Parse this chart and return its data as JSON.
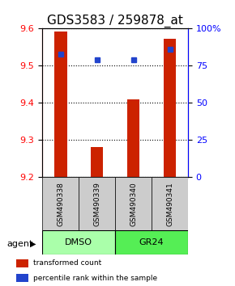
{
  "title": "GDS3583 / 259878_at",
  "categories": [
    "GSM490338",
    "GSM490339",
    "GSM490340",
    "GSM490341"
  ],
  "bar_values": [
    9.592,
    9.282,
    9.41,
    9.572
  ],
  "bar_base": 9.2,
  "blue_values": [
    83,
    79,
    79,
    86
  ],
  "ylim_left": [
    9.2,
    9.6
  ],
  "ylim_right": [
    0,
    100
  ],
  "yticks_left": [
    9.2,
    9.3,
    9.4,
    9.5,
    9.6
  ],
  "yticks_right": [
    0,
    25,
    50,
    75,
    100
  ],
  "ytick_labels_right": [
    "0",
    "25",
    "50",
    "75",
    "100%"
  ],
  "bar_color": "#cc2200",
  "blue_color": "#2244cc",
  "groups": [
    {
      "label": "DMSO",
      "indices": [
        0,
        1
      ],
      "color": "#aaffaa"
    },
    {
      "label": "GR24",
      "indices": [
        2,
        3
      ],
      "color": "#55ee55"
    }
  ],
  "legend_items": [
    {
      "label": "transformed count",
      "color": "#cc2200"
    },
    {
      "label": "percentile rank within the sample",
      "color": "#2244cc"
    }
  ],
  "bar_width": 0.35,
  "sample_box_color": "#cccccc",
  "title_fontsize": 11,
  "tick_fontsize": 8,
  "label_fontsize": 8
}
